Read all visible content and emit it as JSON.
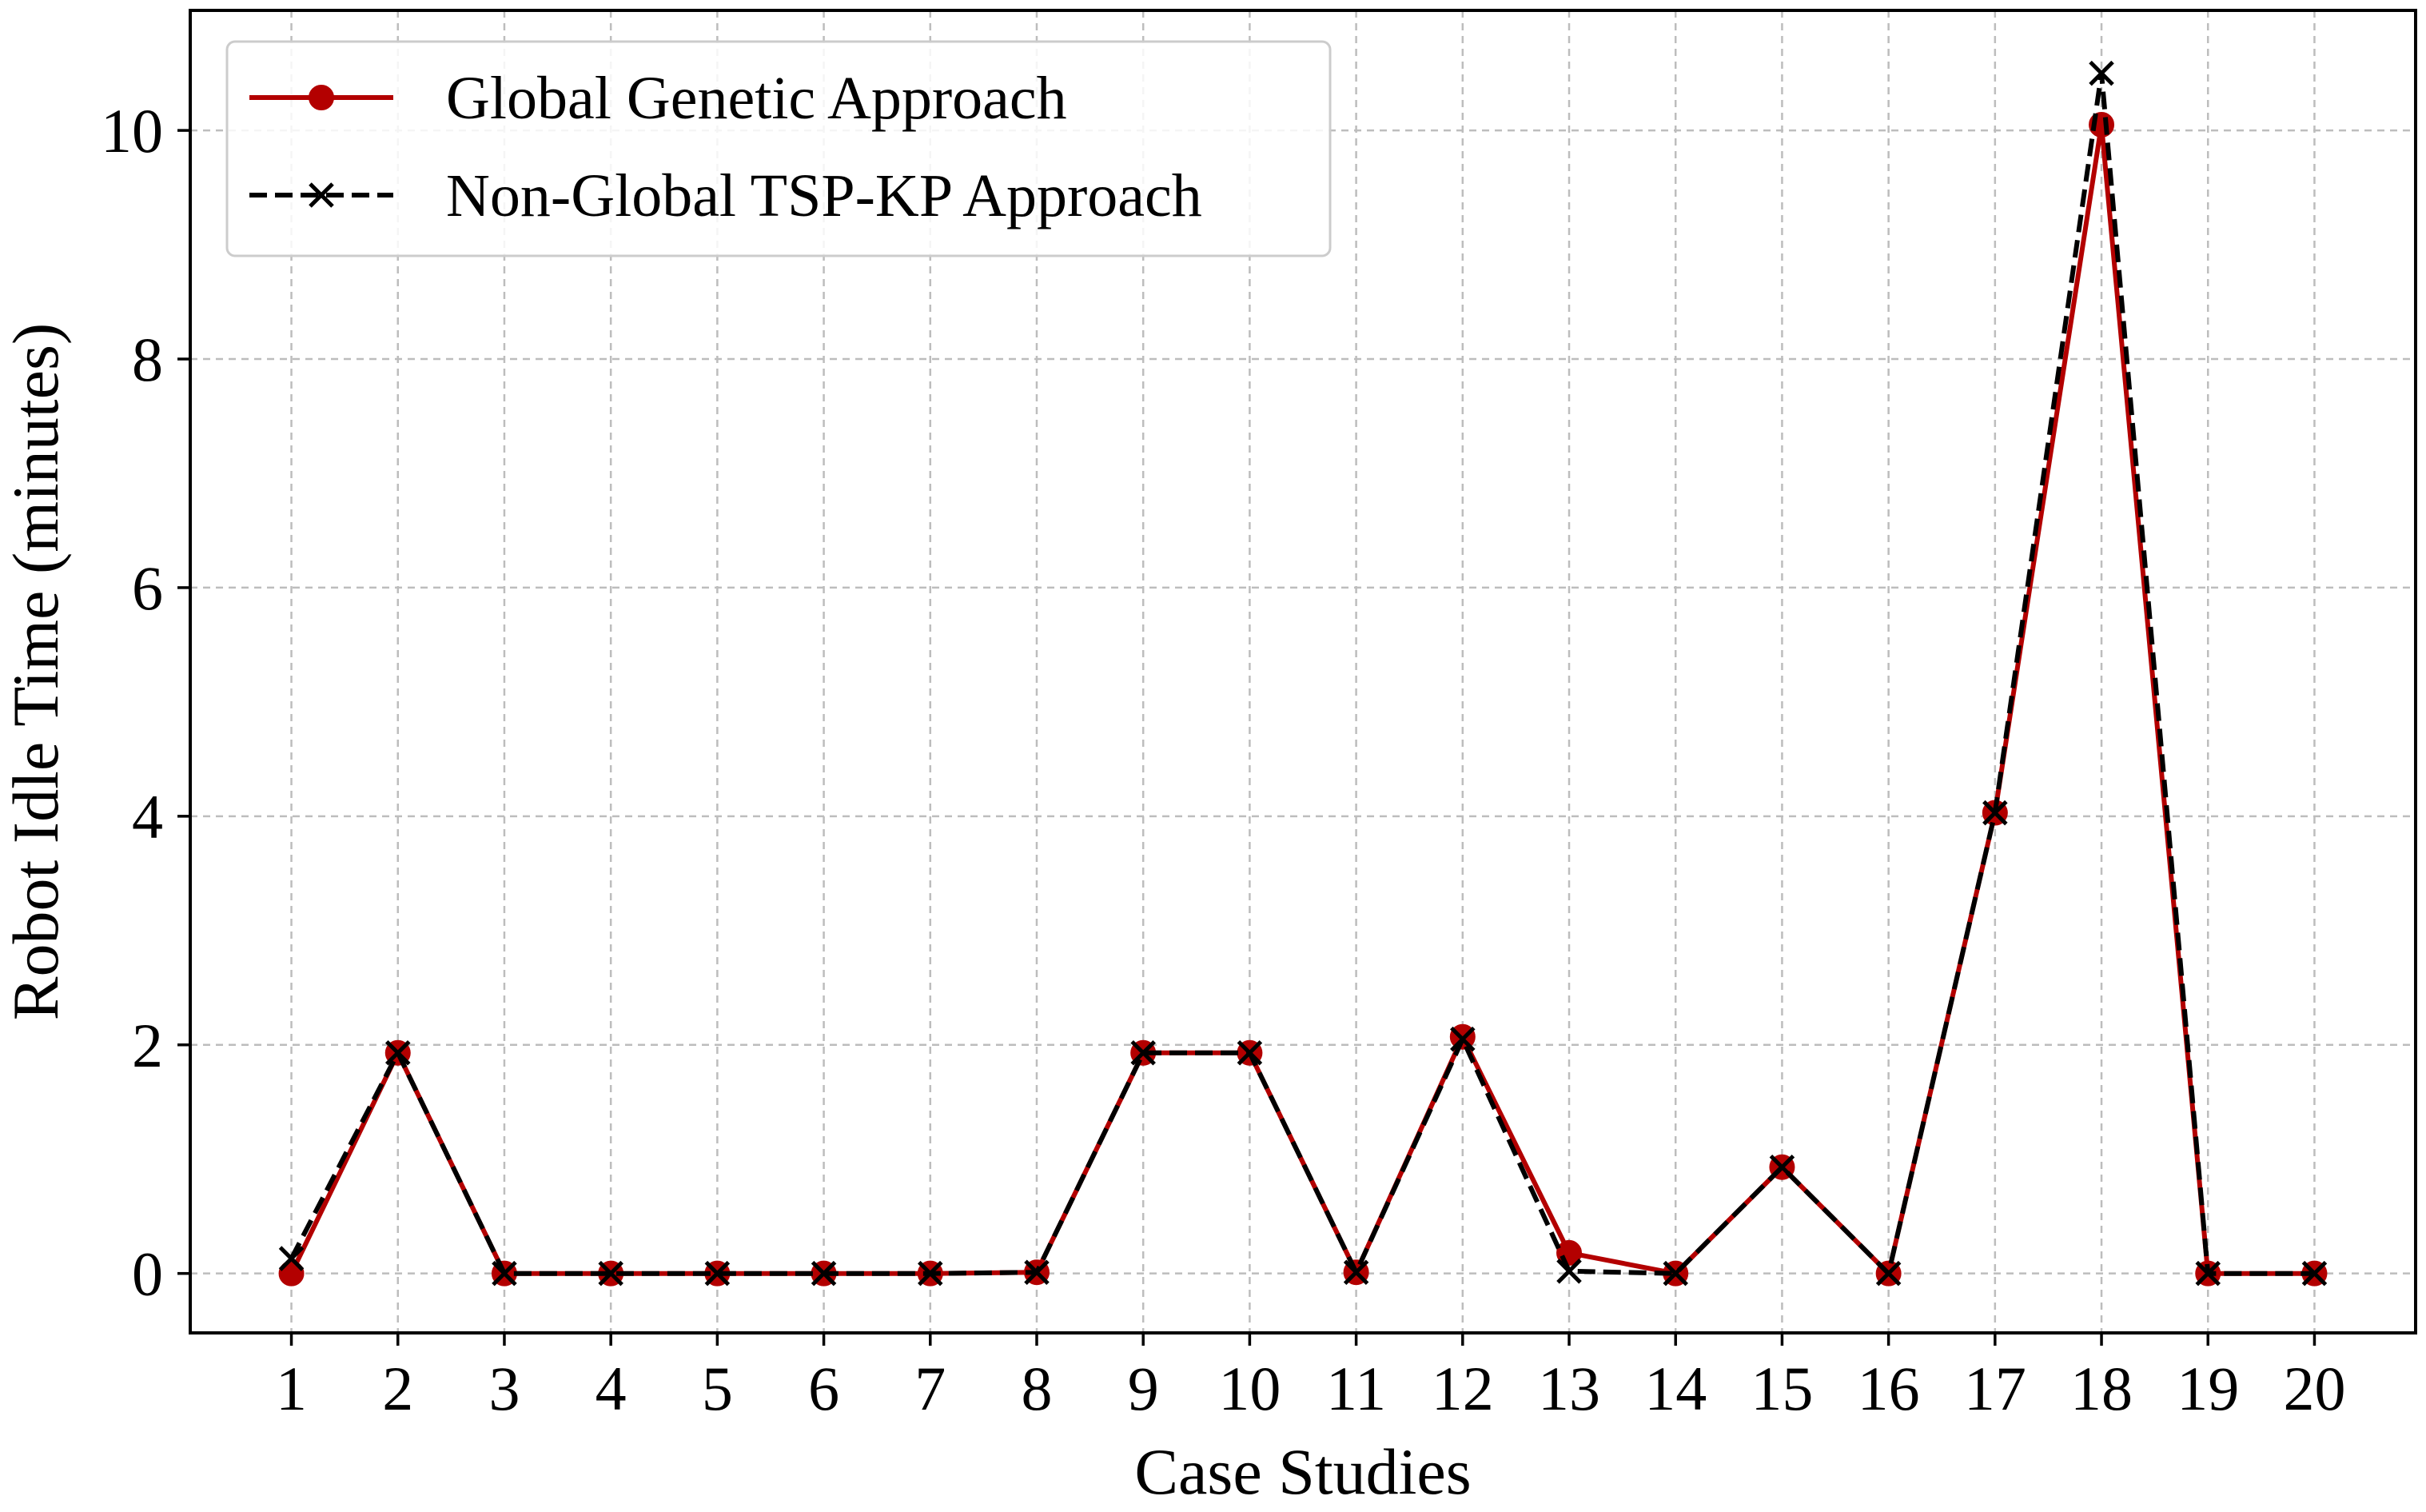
{
  "chart_data": {
    "type": "line",
    "xlabel": "Case Studies",
    "ylabel": "Robot Idle Time (minutes)",
    "x": [
      1,
      2,
      3,
      4,
      5,
      6,
      7,
      8,
      9,
      10,
      11,
      12,
      13,
      14,
      15,
      16,
      17,
      18,
      19,
      20
    ],
    "xticks": [
      "1",
      "2",
      "3",
      "4",
      "5",
      "6",
      "7",
      "8",
      "9",
      "10",
      "11",
      "12",
      "13",
      "14",
      "15",
      "16",
      "17",
      "18",
      "19",
      "20"
    ],
    "yticks": [
      0,
      2,
      4,
      6,
      8,
      10
    ],
    "xlim": [
      0.05,
      20.95
    ],
    "ylim": [
      -0.52,
      11.05
    ],
    "grid": true,
    "legend_position": "top-left",
    "series": [
      {
        "name": "Global Genetic Approach",
        "color": "#b30000",
        "line_style": "solid",
        "marker": "circle",
        "values": [
          0.0,
          1.93,
          0.0,
          0.0,
          0.0,
          0.0,
          0.0,
          0.01,
          1.93,
          1.93,
          0.01,
          2.07,
          0.18,
          0.0,
          0.93,
          0.0,
          4.03,
          10.05,
          0.0,
          0.0
        ]
      },
      {
        "name": "Non-Global TSP-KP Approach",
        "color": "#000000",
        "line_style": "dashed",
        "marker": "x",
        "values": [
          0.13,
          1.93,
          0.0,
          0.0,
          0.0,
          0.0,
          0.0,
          0.01,
          1.93,
          1.93,
          0.01,
          2.05,
          0.02,
          0.0,
          0.93,
          0.0,
          4.03,
          10.5,
          0.0,
          0.0
        ]
      }
    ]
  }
}
